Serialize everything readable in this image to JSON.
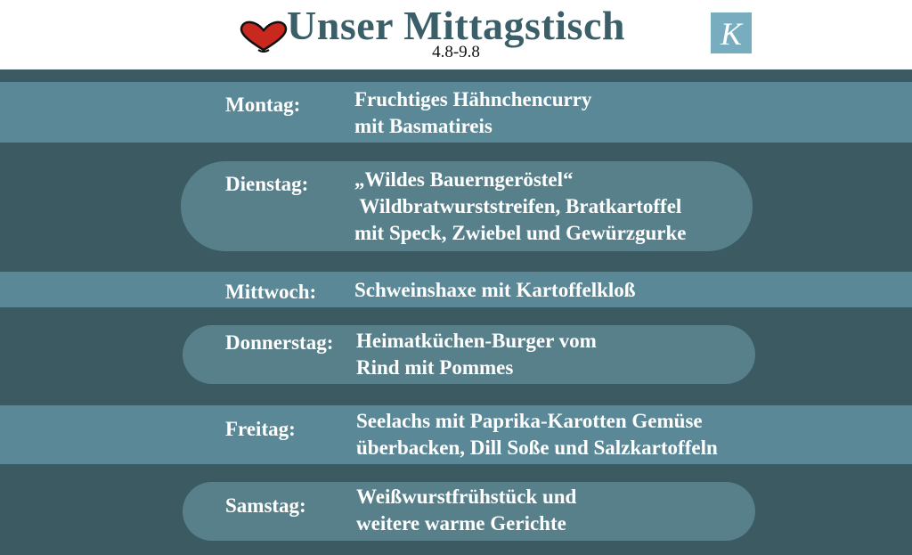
{
  "header": {
    "title": "Unser Mittagstisch",
    "date_range": "4.8-9.8",
    "logo_letter": "K"
  },
  "colors": {
    "title": "#3b5f68",
    "background": "#3b5a62",
    "stripe": "#5a8896",
    "pill": "#58808b",
    "heart": "#c8281e",
    "logo": "#78adc0"
  },
  "menu": [
    {
      "day": "Montag:",
      "dish": [
        "Fruchtiges Hähnchencurry",
        "mit Basmatireis"
      ]
    },
    {
      "day": "Dienstag:",
      "dish": [
        "„Wildes Bauerngeröstel“",
        " Wildbratwurststreifen, Bratkartoffel",
        "mit Speck, Zwiebel und Gewürzgurke"
      ]
    },
    {
      "day": "Mittwoch:",
      "dish": [
        "Schweinshaxe mit Kartoffelkloß"
      ]
    },
    {
      "day": "Donnerstag:",
      "dish": [
        "Heimatküchen-Burger vom",
        "Rind mit Pommes"
      ]
    },
    {
      "day": "Freitag:",
      "dish": [
        "Seelachs mit Paprika-Karotten Gemüse",
        "überbacken, Dill Soße und Salzkartoffeln"
      ]
    },
    {
      "day": "Samstag:",
      "dish": [
        "Weißwurstfrühstück und",
        "weitere warme Gerichte"
      ]
    }
  ]
}
